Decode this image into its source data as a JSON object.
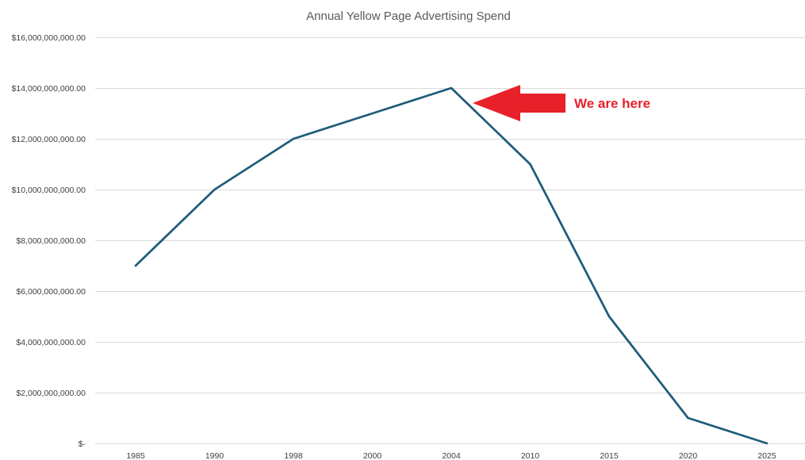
{
  "chart_data": {
    "type": "line",
    "title": "Annual Yellow Page Advertising Spend",
    "categories": [
      "1985",
      "1990",
      "1998",
      "2000",
      "2004",
      "2010",
      "2015",
      "2020",
      "2025"
    ],
    "series": [
      {
        "values": [
          7000000000,
          10000000000,
          12000000000,
          13000000000,
          14000000000,
          11000000000,
          5000000000,
          1000000000,
          0
        ],
        "color": "#1f5c7a"
      }
    ],
    "ylim": [
      0,
      16000000000
    ],
    "y_ticks": [
      0,
      2000000000,
      4000000000,
      6000000000,
      8000000000,
      10000000000,
      12000000000,
      14000000000,
      16000000000
    ],
    "y_tick_labels": [
      "$-",
      "$2,000,000,000.00",
      "$4,000,000,000.00",
      "$6,000,000,000.00",
      "$8,000,000,000.00",
      "$10,000,000,000.00",
      "$12,000,000,000.00",
      "$14,000,000,000.00",
      "$16,000,000,000.00"
    ],
    "grid": "horizontal",
    "annotation": {
      "text": "We are here",
      "points_to_category": "2004",
      "color": "#e8202a"
    }
  }
}
